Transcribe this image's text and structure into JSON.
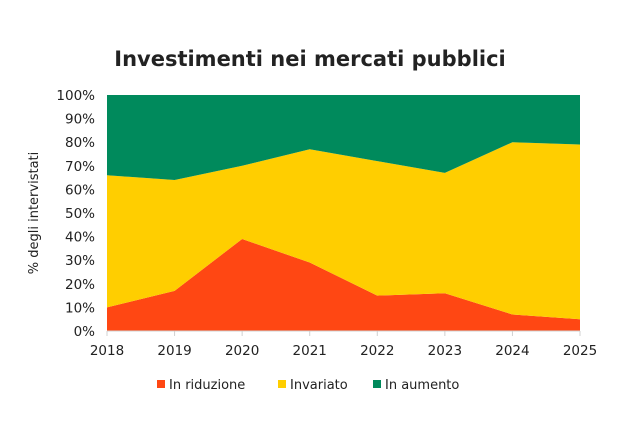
{
  "chart_data": {
    "type": "area",
    "stacked": true,
    "title": "Investimenti nei mercati pubblici",
    "xlabel": "",
    "ylabel": "% degli intervistati",
    "ylim": [
      0,
      100
    ],
    "yticks": [
      "0%",
      "10%",
      "20%",
      "30%",
      "40%",
      "50%",
      "60%",
      "70%",
      "80%",
      "90%",
      "100%"
    ],
    "categories": [
      "2018",
      "2019",
      "2020",
      "2021",
      "2022",
      "2023",
      "2024",
      "2025"
    ],
    "grid": false,
    "legend_position": "bottom",
    "series": [
      {
        "name": "In riduzione",
        "color": "#FF4713",
        "values": [
          10,
          17,
          39,
          29,
          15,
          16,
          7,
          5
        ]
      },
      {
        "name": "Invariato",
        "color": "#FFCE00",
        "values": [
          56,
          47,
          31,
          48,
          57,
          51,
          73,
          74
        ]
      },
      {
        "name": "In aumento",
        "color": "#008A5C",
        "values": [
          34,
          36,
          30,
          23,
          28,
          33,
          20,
          21
        ]
      }
    ]
  }
}
